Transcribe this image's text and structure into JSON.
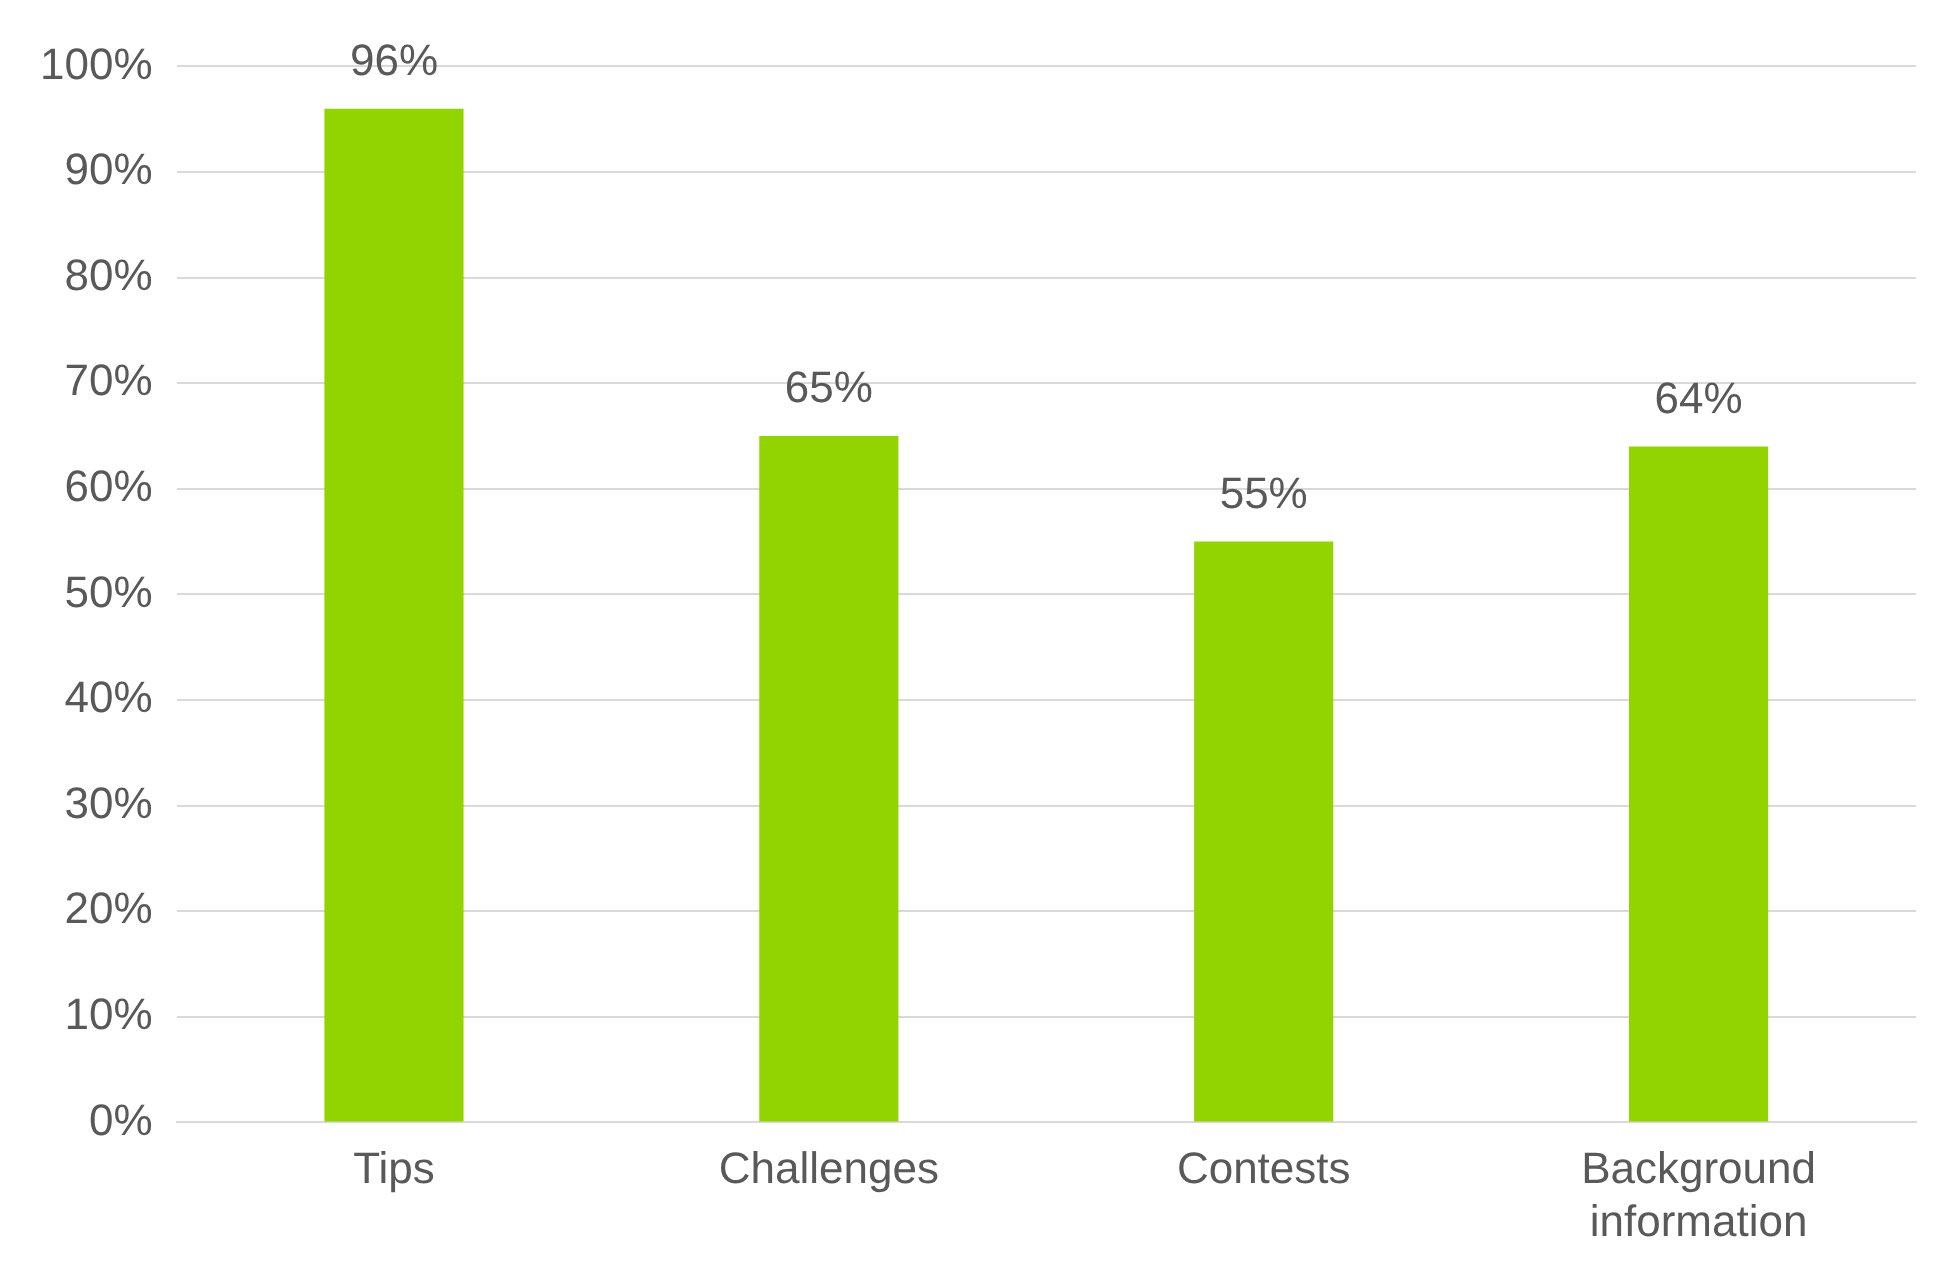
{
  "chart_data": {
    "type": "bar",
    "categories": [
      "Tips",
      "Challenges",
      "Contests",
      "Background information"
    ],
    "values": [
      96,
      65,
      55,
      64
    ],
    "value_labels": [
      "96%",
      "65%",
      "55%",
      "64%"
    ],
    "color": "#92d400",
    "ylim": [
      0,
      100
    ],
    "yticks": [
      {
        "value": 0,
        "label": "0%"
      },
      {
        "value": 10,
        "label": "10%"
      },
      {
        "value": 20,
        "label": "20%"
      },
      {
        "value": 30,
        "label": "30%"
      },
      {
        "value": 40,
        "label": "40%"
      },
      {
        "value": 50,
        "label": "50%"
      },
      {
        "value": 60,
        "label": "60%"
      },
      {
        "value": 70,
        "label": "70%"
      },
      {
        "value": 80,
        "label": "80%"
      },
      {
        "value": 90,
        "label": "90%"
      },
      {
        "value": 100,
        "label": "100%"
      }
    ],
    "grid": "y"
  }
}
